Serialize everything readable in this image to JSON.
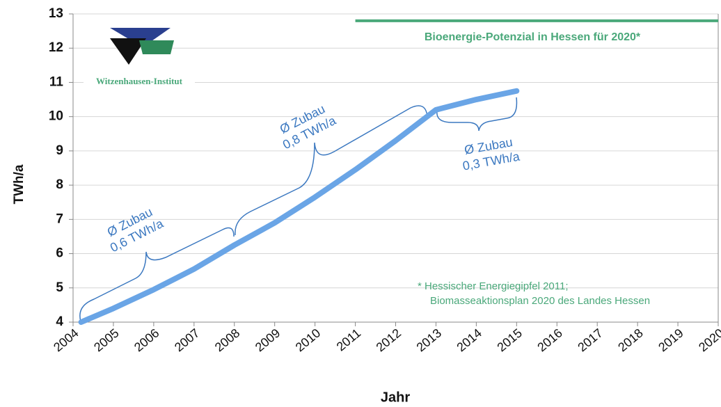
{
  "chart_data": {
    "type": "line",
    "x": [
      2004.2,
      2005,
      2006,
      2007,
      2008,
      2009,
      2010,
      2011,
      2012,
      2013,
      2014,
      2015
    ],
    "values": [
      4.0,
      4.4,
      4.95,
      5.55,
      6.25,
      6.9,
      7.65,
      8.45,
      9.3,
      10.2,
      10.5,
      10.75
    ],
    "color": "#6aa5e6",
    "xlim": [
      2004,
      2020
    ],
    "xticks": [
      2004,
      2005,
      2006,
      2007,
      2008,
      2009,
      2010,
      2011,
      2012,
      2013,
      2014,
      2015,
      2016,
      2017,
      2018,
      2019,
      2020
    ],
    "ylim": [
      4,
      13
    ],
    "yticks": [
      4,
      5,
      6,
      7,
      8,
      9,
      10,
      11,
      12,
      13
    ],
    "grid": true,
    "ylabel": "TWh/a",
    "xlabel": "Jahr",
    "target": {
      "label": "Bioenergie-Potenzial in Hessen für 2020*",
      "value": 12.8,
      "color": "#4aa87a"
    },
    "annotations": [
      [
        "Ø Zubau",
        "0,6 TWh/a"
      ],
      [
        "Ø Zubau",
        "0,8 TWh/a"
      ],
      [
        "Ø Zubau",
        "0,3 TWh/a"
      ]
    ],
    "footnote": [
      "* Hessischer Energiegipfel 2011;",
      "Biomasseaktionsplan 2020 des Landes Hessen"
    ],
    "logo": "Witzenhausen-Institut"
  }
}
